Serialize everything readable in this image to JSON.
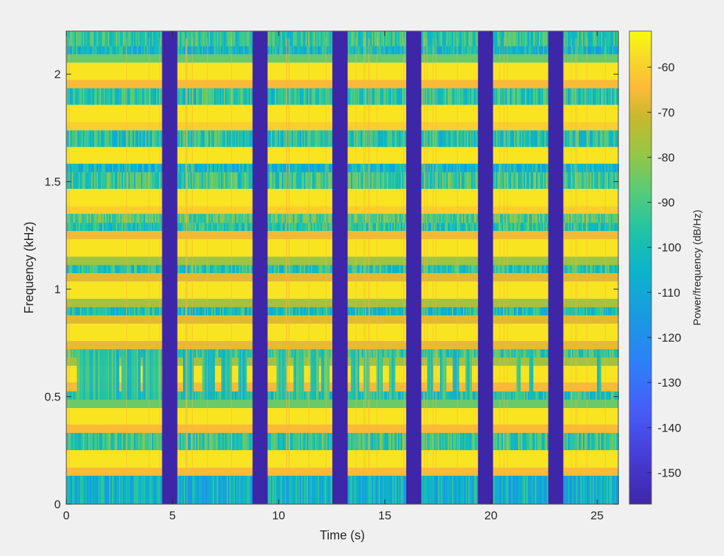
{
  "chart_data": {
    "type": "heatmap",
    "title": "",
    "xlabel": "Time (s)",
    "ylabel": "Frequency (kHz)",
    "xlim": [
      0,
      26
    ],
    "ylim": [
      0,
      2.2
    ],
    "xticks": [
      0,
      5,
      10,
      15,
      20,
      25
    ],
    "yticks": [
      0,
      0.5,
      1,
      1.5,
      2
    ],
    "ytick_labels": [
      "0",
      "0.5",
      "1",
      "1.5",
      "2"
    ],
    "xtick_labels": [
      "0",
      "5",
      "10",
      "15",
      "20",
      "25"
    ],
    "colorbar": {
      "label": "Power/frequency (dB/Hz)",
      "range": [
        -157,
        -52
      ],
      "ticks": [
        -60,
        -70,
        -80,
        -90,
        -100,
        -110,
        -120,
        -130,
        -140,
        -150
      ],
      "tick_labels": [
        "-60",
        "-70",
        "-80",
        "-90",
        "-100",
        "-110",
        "-120",
        "-130",
        "-140",
        "-150"
      ],
      "colormap": "parula"
    },
    "silent_gaps_s": [
      [
        4.51,
        5.23
      ],
      [
        8.77,
        9.48
      ],
      [
        12.53,
        13.25
      ],
      [
        16.01,
        16.72
      ],
      [
        19.39,
        20.1
      ],
      [
        22.7,
        23.41
      ]
    ],
    "frequency_bands": [
      {
        "from_khz": 2.13,
        "to_khz": 2.2,
        "db": -95,
        "noisy": true
      },
      {
        "from_khz": 2.092,
        "to_khz": 2.13,
        "db": -103,
        "noisy": true
      },
      {
        "from_khz": 2.053,
        "to_khz": 2.092,
        "db": -85,
        "noisy": false
      },
      {
        "from_khz": 1.973,
        "to_khz": 2.053,
        "db": -56,
        "noisy": false
      },
      {
        "from_khz": 1.934,
        "to_khz": 1.973,
        "db": -65,
        "noisy": false
      },
      {
        "from_khz": 1.857,
        "to_khz": 1.934,
        "db": -96,
        "noisy": true
      },
      {
        "from_khz": 1.777,
        "to_khz": 1.857,
        "db": -56,
        "noisy": false
      },
      {
        "from_khz": 1.738,
        "to_khz": 1.777,
        "db": -60,
        "noisy": false
      },
      {
        "from_khz": 1.661,
        "to_khz": 1.738,
        "db": -97,
        "noisy": true
      },
      {
        "from_khz": 1.583,
        "to_khz": 1.661,
        "db": -56,
        "noisy": false
      },
      {
        "from_khz": 1.543,
        "to_khz": 1.583,
        "db": -104,
        "noisy": true
      },
      {
        "from_khz": 1.466,
        "to_khz": 1.543,
        "db": -93,
        "noisy": true
      },
      {
        "from_khz": 1.386,
        "to_khz": 1.466,
        "db": -56,
        "noisy": false
      },
      {
        "from_khz": 1.35,
        "to_khz": 1.386,
        "db": -60,
        "noisy": false
      },
      {
        "from_khz": 1.308,
        "to_khz": 1.35,
        "db": -90,
        "noisy": true
      },
      {
        "from_khz": 1.27,
        "to_khz": 1.308,
        "db": -97,
        "noisy": true
      },
      {
        "from_khz": 1.232,
        "to_khz": 1.27,
        "db": -66,
        "noisy": false
      },
      {
        "from_khz": 1.151,
        "to_khz": 1.232,
        "db": -56,
        "noisy": false
      },
      {
        "from_khz": 1.112,
        "to_khz": 1.151,
        "db": -78,
        "noisy": false
      },
      {
        "from_khz": 1.074,
        "to_khz": 1.112,
        "db": -97,
        "noisy": true
      },
      {
        "from_khz": 1.035,
        "to_khz": 1.074,
        "db": -68,
        "noisy": false
      },
      {
        "from_khz": 0.955,
        "to_khz": 1.035,
        "db": -56,
        "noisy": false
      },
      {
        "from_khz": 0.916,
        "to_khz": 0.955,
        "db": -77,
        "noisy": false
      },
      {
        "from_khz": 0.878,
        "to_khz": 0.916,
        "db": -100,
        "noisy": true
      },
      {
        "from_khz": 0.839,
        "to_khz": 0.878,
        "db": -68,
        "noisy": false
      },
      {
        "from_khz": 0.759,
        "to_khz": 0.839,
        "db": -56,
        "noisy": false
      },
      {
        "from_khz": 0.72,
        "to_khz": 0.759,
        "db": -67,
        "noisy": false
      },
      {
        "from_khz": 0.682,
        "to_khz": 0.72,
        "db": -92,
        "noisy": true
      },
      {
        "from_khz": 0.643,
        "to_khz": 0.682,
        "db": -77,
        "noisy": false
      },
      {
        "from_khz": 0.566,
        "to_khz": 0.643,
        "db": -56,
        "noisy": false
      },
      {
        "from_khz": 0.524,
        "to_khz": 0.566,
        "db": -65,
        "noisy": false
      },
      {
        "from_khz": 0.486,
        "to_khz": 0.524,
        "db": -98,
        "noisy": true
      },
      {
        "from_khz": 0.447,
        "to_khz": 0.486,
        "db": -85,
        "noisy": false
      },
      {
        "from_khz": 0.37,
        "to_khz": 0.447,
        "db": -56,
        "noisy": false
      },
      {
        "from_khz": 0.331,
        "to_khz": 0.37,
        "db": -65,
        "noisy": false
      },
      {
        "from_khz": 0.251,
        "to_khz": 0.331,
        "db": -94,
        "noisy": true
      },
      {
        "from_khz": 0.17,
        "to_khz": 0.251,
        "db": -56,
        "noisy": false
      },
      {
        "from_khz": 0.132,
        "to_khz": 0.17,
        "db": -65,
        "noisy": false
      },
      {
        "from_khz": 0.0,
        "to_khz": 0.132,
        "db": -105,
        "noisy": true
      }
    ],
    "tone_bursts": {
      "band_khz": [
        0.486,
        0.72
      ],
      "bursts_s": [
        [
          0.5,
          1.5
        ],
        [
          1.5,
          2.5
        ],
        [
          2.6,
          3.5
        ],
        [
          3.6,
          4.5
        ],
        [
          5.5,
          6.0
        ],
        [
          6.4,
          7.0
        ],
        [
          7.3,
          7.8
        ],
        [
          8.1,
          8.5
        ],
        [
          9.9,
          10.4
        ],
        [
          10.7,
          11.2
        ],
        [
          11.5,
          11.9
        ],
        [
          12.0,
          12.4
        ],
        [
          13.4,
          13.8
        ],
        [
          14.0,
          14.3
        ],
        [
          14.6,
          14.9
        ],
        [
          15.2,
          15.5
        ],
        [
          17.0,
          17.3
        ],
        [
          17.6,
          17.9
        ],
        [
          18.2,
          18.5
        ],
        [
          18.8,
          19.1
        ],
        [
          21.2,
          21.4
        ],
        [
          21.8,
          22.0
        ],
        [
          25.0,
          25.2
        ]
      ]
    }
  }
}
